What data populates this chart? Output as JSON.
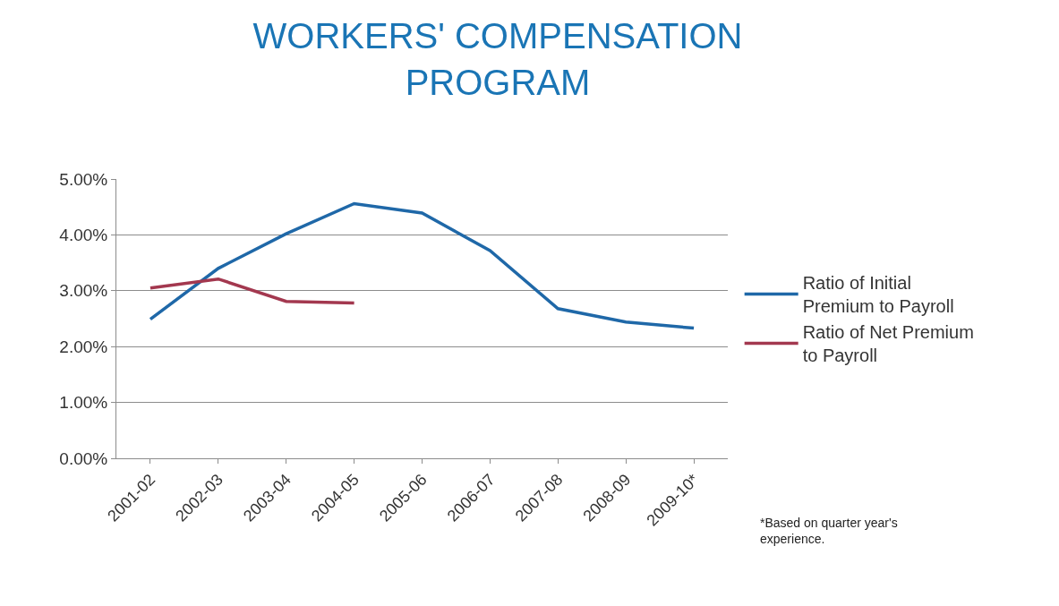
{
  "chart_data": {
    "type": "line",
    "title": "WORKERS' COMPENSATION PROGRAM",
    "categories": [
      "2001-02",
      "2002-03",
      "2003-04",
      "2004-05",
      "2005-06",
      "2006-07",
      "2007-08",
      "2008-09",
      "2009-10*"
    ],
    "series": [
      {
        "name": "Ratio of Initial Premium to Payroll",
        "color": "#1f68a8",
        "values": [
          2.49,
          3.4,
          4.02,
          4.56,
          4.39,
          3.72,
          2.68,
          2.44,
          2.33
        ]
      },
      {
        "name": "Ratio of Net Premium to Payroll",
        "color": "#a3384f",
        "values": [
          3.05,
          3.21,
          2.81,
          2.78,
          null,
          null,
          null,
          null,
          null
        ]
      }
    ],
    "ylim": [
      0,
      5
    ],
    "yticks": [
      {
        "value": 0,
        "label": "0.00%"
      },
      {
        "value": 1,
        "label": "1.00%"
      },
      {
        "value": 2,
        "label": "2.00%"
      },
      {
        "value": 3,
        "label": "3.00%"
      },
      {
        "value": 4,
        "label": "4.00%"
      },
      {
        "value": 5,
        "label": "5.00%"
      }
    ],
    "grid": "y",
    "legend": "right",
    "marker": "none",
    "line_style": "solid",
    "annotations": [
      "*Based on quarter year's experience."
    ]
  }
}
